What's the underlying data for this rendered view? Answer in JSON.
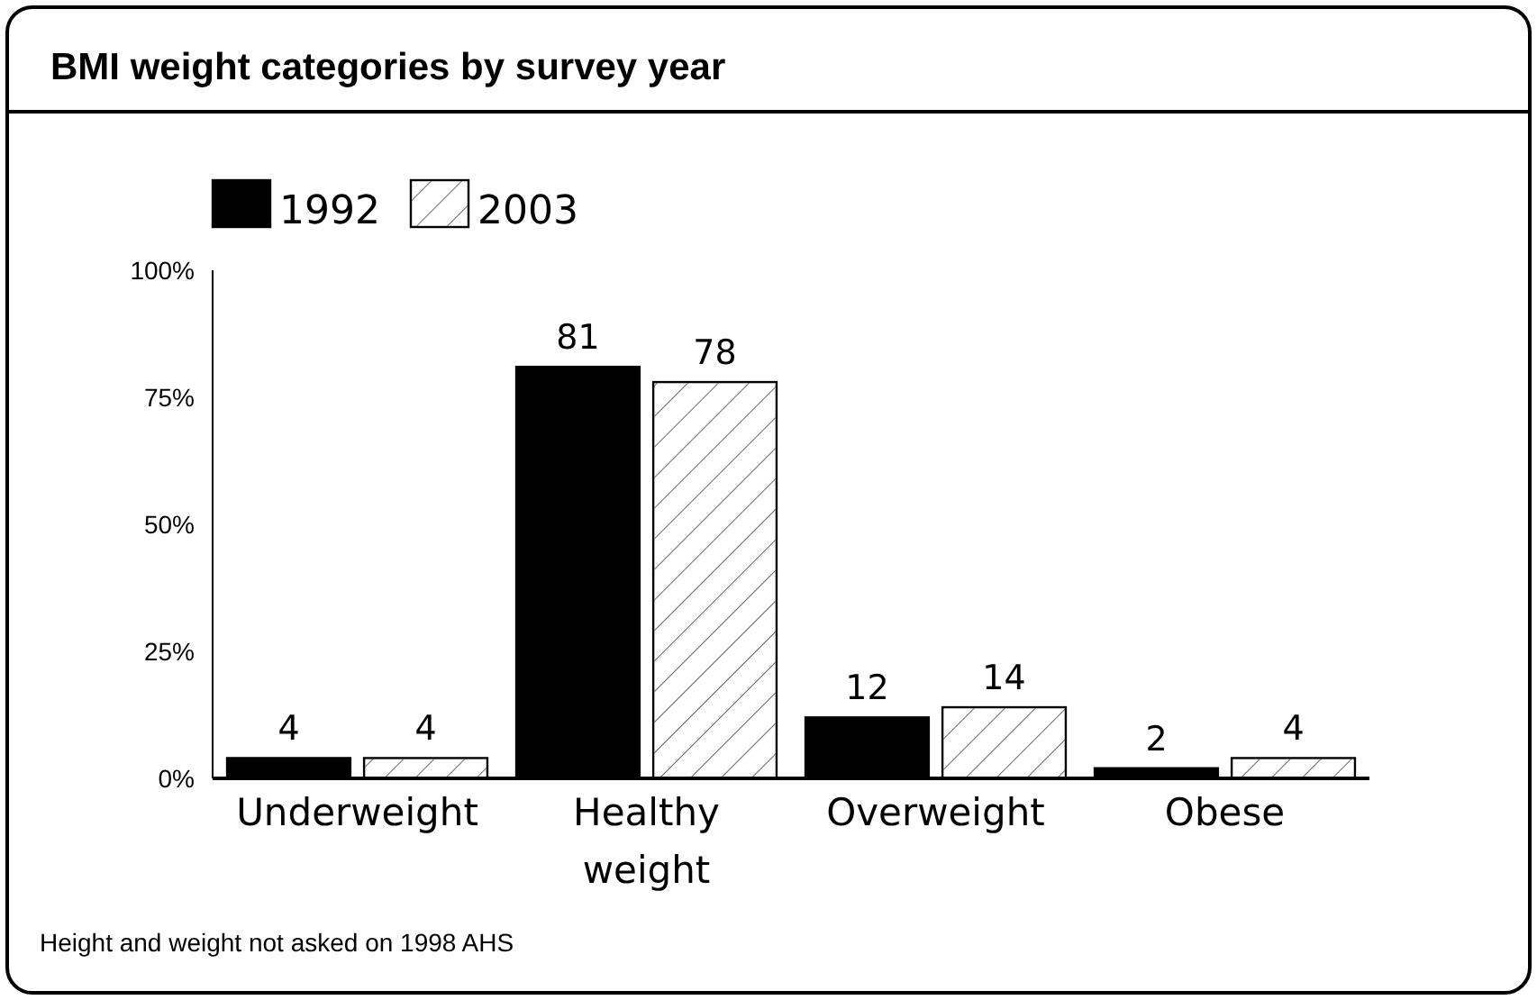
{
  "chart_data": {
    "type": "bar",
    "title": "BMI weight categories by survey year",
    "categories": [
      "Underweight",
      "Healthy weight",
      "Overweight",
      "Obese"
    ],
    "series": [
      {
        "name": "1992",
        "color": "#000000",
        "values": [
          4,
          81,
          12,
          2
        ]
      },
      {
        "name": "2003",
        "color": "#ffffff",
        "values": [
          4,
          78,
          14,
          4
        ]
      }
    ],
    "ylim": [
      0,
      100
    ],
    "yticks": [
      {
        "value": 0,
        "label": "0%"
      },
      {
        "value": 25,
        "label": "25%"
      },
      {
        "value": 50,
        "label": "50%"
      },
      {
        "value": 75,
        "label": "75%"
      },
      {
        "value": 100,
        "label": "100%"
      }
    ],
    "data_labels": true,
    "legend": "top left",
    "grid": false,
    "annotations": [
      "Height and weight not asked on 1998 AHS"
    ]
  }
}
